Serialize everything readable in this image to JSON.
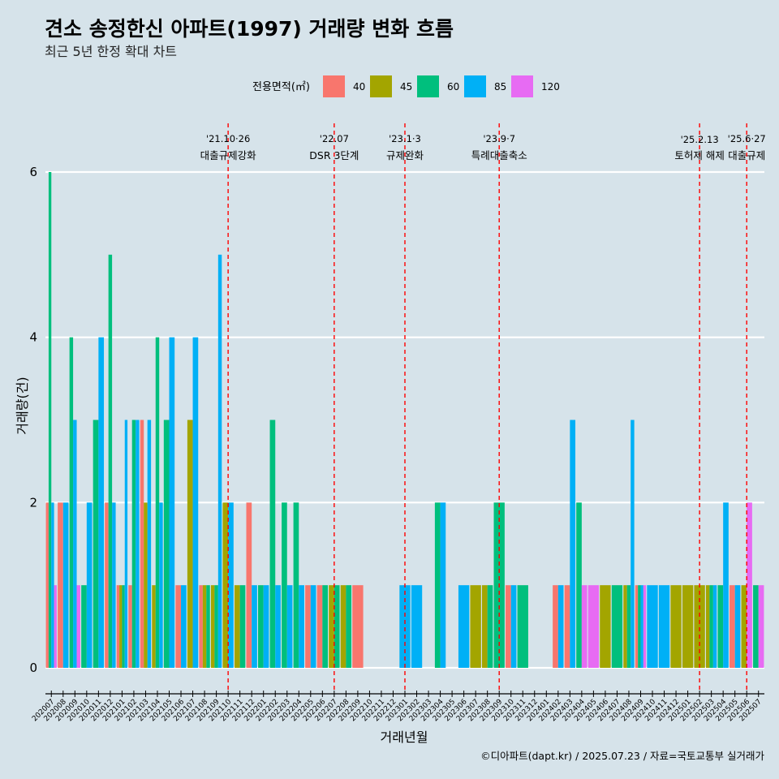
{
  "chart_data": {
    "type": "bar",
    "title": "견소 송정한신 아파트(1997) 거래량 변화 흐름",
    "subtitle": "최근 5년 한정 확대 차트",
    "xlabel": "거래년월",
    "ylabel": "거래량(건)",
    "ylim": [
      0,
      6
    ],
    "yticks": [
      0,
      2,
      4,
      6
    ],
    "legend_title": "전용면적(㎡)",
    "legend_placement": "top",
    "caption": "©디아파트(dapt.kr) / 2025.07.23 / 자료=국토교통부 실거래가",
    "categories": [
      "202007",
      "202008",
      "202009",
      "202010",
      "202011",
      "202012",
      "202101",
      "202102",
      "202103",
      "202104",
      "202105",
      "202106",
      "202107",
      "202108",
      "202109",
      "202110",
      "202111",
      "202112",
      "202201",
      "202202",
      "202203",
      "202204",
      "202205",
      "202206",
      "202207",
      "202208",
      "202209",
      "202210",
      "202211",
      "202212",
      "202301",
      "202302",
      "202303",
      "202304",
      "202305",
      "202306",
      "202307",
      "202308",
      "202309",
      "202310",
      "202311",
      "202312",
      "202401",
      "202402",
      "202403",
      "202404",
      "202405",
      "202406",
      "202407",
      "202408",
      "202409",
      "202410",
      "202411",
      "202412",
      "202501",
      "202502",
      "202503",
      "202504",
      "202505",
      "202506",
      "202507"
    ],
    "series": [
      {
        "name": "40",
        "color": "#f8766d",
        "values": [
          2,
          2,
          0,
          0,
          0,
          2,
          1,
          1,
          3,
          0,
          0,
          1,
          0,
          1,
          0,
          0,
          0,
          2,
          0,
          0,
          0,
          0,
          1,
          1,
          0,
          0,
          1,
          0,
          0,
          0,
          0,
          0,
          0,
          0,
          0,
          0,
          0,
          0,
          0,
          1,
          0,
          0,
          0,
          1,
          1,
          0,
          0,
          0,
          0,
          0,
          1,
          0,
          0,
          0,
          0,
          0,
          0,
          0,
          1,
          0,
          0
        ]
      },
      {
        "name": "45",
        "color": "#a3a500",
        "values": [
          0,
          0,
          0,
          0,
          0,
          0,
          1,
          0,
          2,
          1,
          0,
          0,
          3,
          1,
          1,
          2,
          1,
          0,
          0,
          0,
          0,
          0,
          0,
          0,
          1,
          1,
          0,
          0,
          0,
          0,
          0,
          0,
          0,
          0,
          0,
          0,
          1,
          1,
          0,
          0,
          0,
          0,
          0,
          0,
          0,
          0,
          0,
          1,
          0,
          1,
          0,
          0,
          0,
          1,
          1,
          1,
          1,
          0,
          0,
          1,
          0
        ]
      },
      {
        "name": "60",
        "color": "#00bf7d",
        "values": [
          6,
          0,
          4,
          1,
          3,
          5,
          1,
          3,
          0,
          4,
          3,
          0,
          0,
          1,
          1,
          0,
          1,
          0,
          1,
          3,
          2,
          2,
          0,
          1,
          1,
          1,
          0,
          0,
          0,
          0,
          0,
          0,
          0,
          2,
          0,
          0,
          0,
          1,
          2,
          0,
          1,
          0,
          0,
          0,
          0,
          2,
          0,
          0,
          1,
          1,
          1,
          0,
          0,
          0,
          0,
          0,
          1,
          1,
          0,
          0,
          1
        ]
      },
      {
        "name": "85",
        "color": "#00b0f6",
        "values": [
          2,
          2,
          3,
          2,
          4,
          2,
          3,
          3,
          3,
          2,
          4,
          1,
          4,
          0,
          5,
          2,
          0,
          1,
          1,
          1,
          1,
          1,
          1,
          0,
          0,
          0,
          0,
          0,
          0,
          0,
          1,
          1,
          0,
          2,
          0,
          1,
          0,
          0,
          0,
          1,
          0,
          0,
          0,
          1,
          3,
          0,
          0,
          0,
          0,
          3,
          1,
          1,
          1,
          0,
          0,
          0,
          1,
          2,
          1,
          0,
          0
        ]
      },
      {
        "name": "120",
        "color": "#e76bf3",
        "values": [
          1,
          0,
          1,
          0,
          0,
          0,
          0,
          0,
          0,
          0,
          0,
          0,
          0,
          0,
          0,
          0,
          0,
          0,
          0,
          0,
          0,
          0,
          0,
          0,
          0,
          0,
          0,
          0,
          0,
          0,
          0,
          0,
          0,
          0,
          0,
          0,
          0,
          0,
          0,
          0,
          0,
          0,
          0,
          0,
          0,
          1,
          1,
          0,
          0,
          0,
          1,
          0,
          0,
          0,
          0,
          0,
          0,
          0,
          0,
          2,
          1
        ]
      }
    ],
    "events": [
      {
        "month": "202110",
        "date": "'21.10·26",
        "label": "대출규제강화"
      },
      {
        "month": "202207",
        "date": "'22.07",
        "label": "DSR 3단계"
      },
      {
        "month": "202301",
        "date": "'23.1·3",
        "label": "규제완화"
      },
      {
        "month": "202309",
        "date": "'23.9·7",
        "label": "특례대출축소"
      },
      {
        "month": "202502",
        "date": "'25.2.13",
        "label": "토허제 해제"
      },
      {
        "month": "202506",
        "date": "'25.6·27",
        "label": "대출규제"
      }
    ]
  }
}
